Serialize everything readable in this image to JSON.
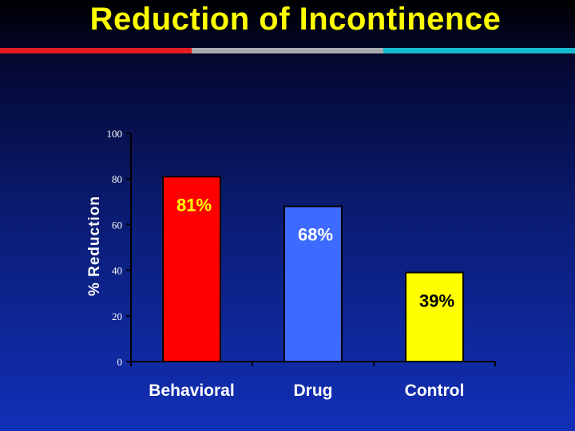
{
  "slide": {
    "title": "Reduction of Incontinence",
    "rule_colors": [
      "#e31b23",
      "#a9a9b0",
      "#15b9d0"
    ]
  },
  "chart_data": {
    "type": "bar",
    "title": "Reduction of Incontinence",
    "xlabel": "",
    "ylabel": "% Reduction",
    "ylim": [
      0,
      100
    ],
    "yticks": [
      0,
      20,
      40,
      60,
      80,
      100
    ],
    "categories": [
      "Behavioral",
      "Drug",
      "Control"
    ],
    "values": [
      81,
      68,
      39
    ],
    "data_labels": [
      "81%",
      "68%",
      "39%"
    ],
    "bar_colors": [
      "#ff0000",
      "#3d6bff",
      "#ffff00"
    ],
    "label_colors": [
      "#ffff00",
      "#ffffff",
      "#000000"
    ],
    "grid": false
  }
}
